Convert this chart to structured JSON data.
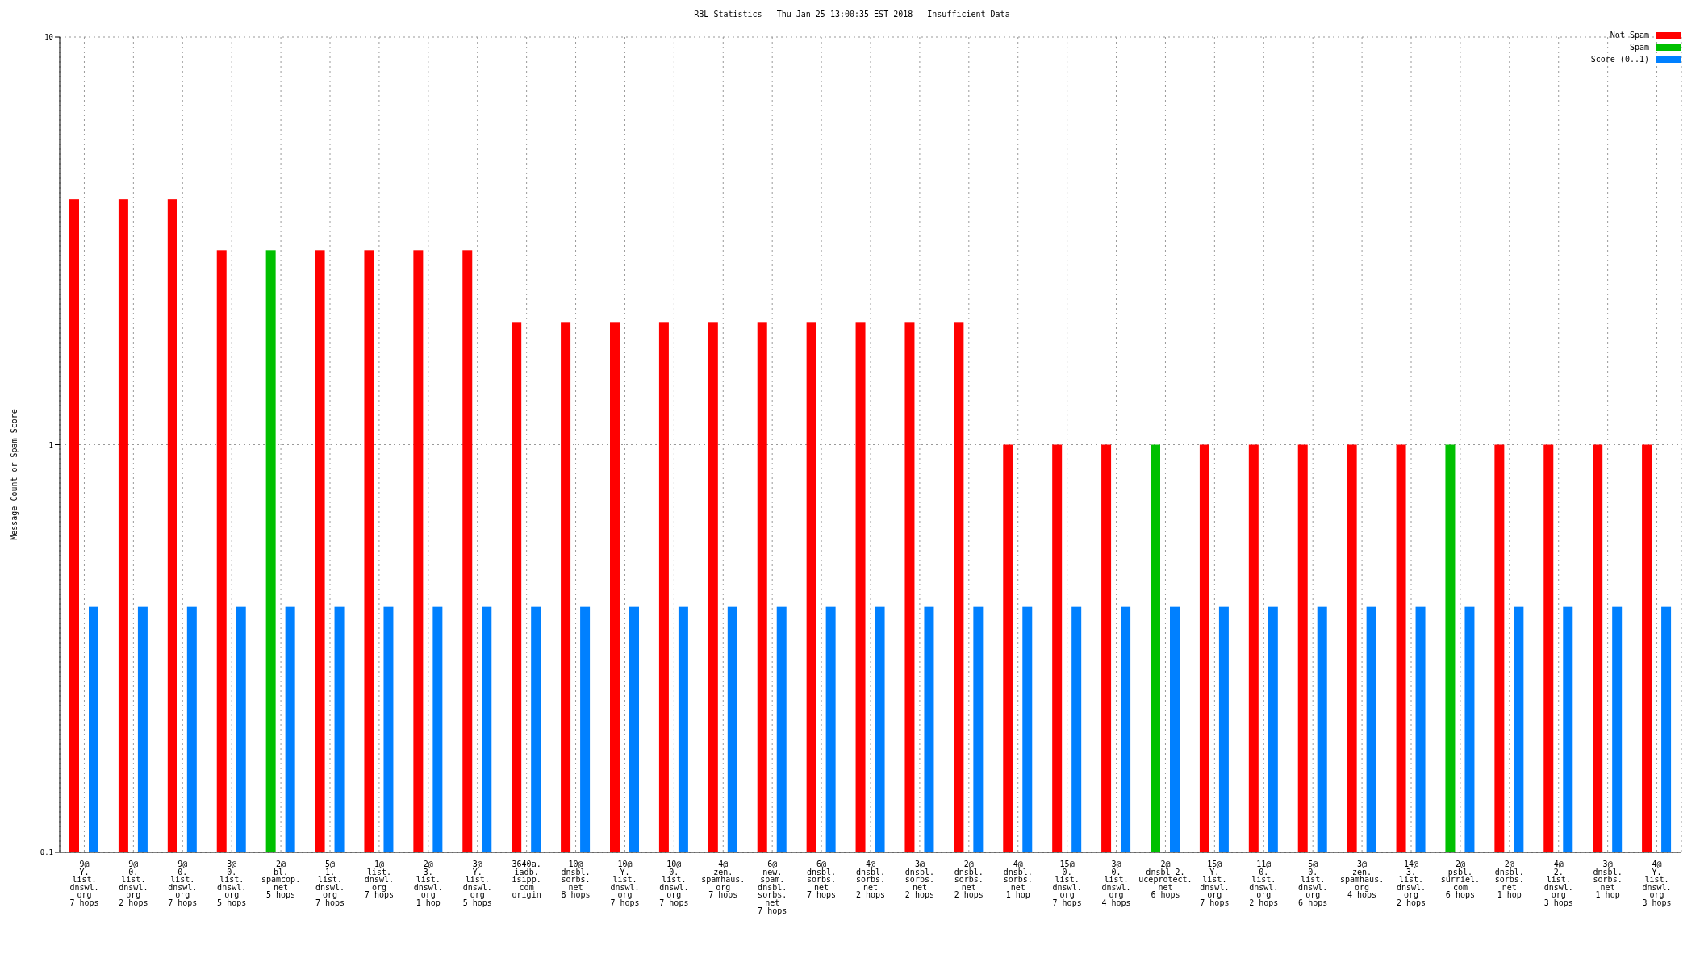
{
  "chart_data": {
    "type": "bar",
    "title": "RBL Statistics - Thu Jan 25 13:00:35 EST 2018 - Insufficient Data",
    "ylabel": "Message Count or Spam Score",
    "categories": [
      "9@\nY.\nlist.\ndnswl.\norg\n7 hops",
      "9@\n0.\nlist.\ndnswl.\norg\n2 hops",
      "9@\n0.\nlist.\ndnswl.\norg\n7 hops",
      "3@\n0.\nlist.\ndnswl.\norg\n5 hops",
      "2@\nbl.\nspamcop.\nnet\n5 hops",
      "5@\n1.\nlist.\ndnswl.\norg\n7 hops",
      "1@\nlist.\ndnswl.\norg\n7 hops",
      "2@\n3.\nlist.\ndnswl.\norg\n1 hop",
      "3@\nY.\nlist.\ndnswl.\norg\n5 hops",
      "3640a.\niadb.\nisipp.\ncom\norigin",
      "10@\ndnsbl.\nsorbs.\nnet\n8 hops",
      "10@\nY.\nlist.\ndnswl.\norg\n7 hops",
      "10@\n0.\nlist.\ndnswl.\norg\n7 hops",
      "4@\nzen.\nspamhaus.\norg\n7 hops",
      "6@\nnew.\nspam.\ndnsbl.\nsorbs.\nnet\n7 hops",
      "6@\ndnsbl.\nsorbs.\nnet\n7 hops",
      "4@\ndnsbl.\nsorbs.\nnet\n2 hops",
      "3@\ndnsbl.\nsorbs.\nnet\n2 hops",
      "2@\ndnsbl.\nsorbs.\nnet\n2 hops",
      "4@\ndnsbl.\nsorbs.\nnet\n1 hop",
      "15@\n0.\nlist.\ndnswl.\norg\n7 hops",
      "3@\n0.\nlist.\ndnswl.\norg\n4 hops",
      "2@\ndnsbl-2.\nuceprotect.\nnet\n6 hops",
      "15@\nY.\nlist.\ndnswl.\norg\n7 hops",
      "11@\n0.\nlist.\ndnswl.\norg\n2 hops",
      "5@\n0.\nlist.\ndnswl.\norg\n6 hops",
      "3@\nzen.\nspamhaus.\norg\n4 hops",
      "14@\n3.\nlist.\ndnswl.\norg\n2 hops",
      "2@\npsbl.\nsurriel.\ncom\n6 hops",
      "2@\ndnsbl.\nsorbs.\nnet\n1 hop",
      "4@\n2.\nlist.\ndnswl.\norg\n3 hops",
      "3@\ndnsbl.\nsorbs.\nnet\n1 hop",
      "4@\nY.\nlist.\ndnswl.\norg\n3 hops"
    ],
    "series": [
      {
        "name": "Not Spam",
        "color": "#ff0000",
        "values": [
          4,
          4,
          4,
          3,
          null,
          3,
          3,
          3,
          3,
          2,
          2,
          2,
          2,
          2,
          2,
          2,
          2,
          2,
          2,
          1,
          1,
          1,
          null,
          1,
          1,
          1,
          1,
          1,
          null,
          1,
          1,
          1,
          1
        ]
      },
      {
        "name": "Spam",
        "color": "#00c000",
        "values": [
          null,
          null,
          null,
          null,
          3,
          null,
          null,
          null,
          null,
          null,
          null,
          null,
          null,
          null,
          null,
          null,
          null,
          null,
          null,
          null,
          null,
          null,
          1,
          null,
          null,
          null,
          null,
          null,
          1,
          null,
          null,
          null,
          null
        ]
      },
      {
        "name": "Score (0..1)",
        "color": "#0080ff",
        "values": [
          0.4,
          0.4,
          0.4,
          0.4,
          0.4,
          0.4,
          0.4,
          0.4,
          0.4,
          0.4,
          0.4,
          0.4,
          0.4,
          0.4,
          0.4,
          0.4,
          0.4,
          0.4,
          0.4,
          0.4,
          0.4,
          0.4,
          0.4,
          0.4,
          0.4,
          0.4,
          0.4,
          0.4,
          0.4,
          0.4,
          0.4,
          0.4,
          0.4
        ]
      }
    ],
    "log": "y",
    "ylim": [
      0.1,
      10
    ],
    "yticks": [
      0.1,
      1,
      10
    ],
    "grid": true,
    "legend": "top right"
  }
}
